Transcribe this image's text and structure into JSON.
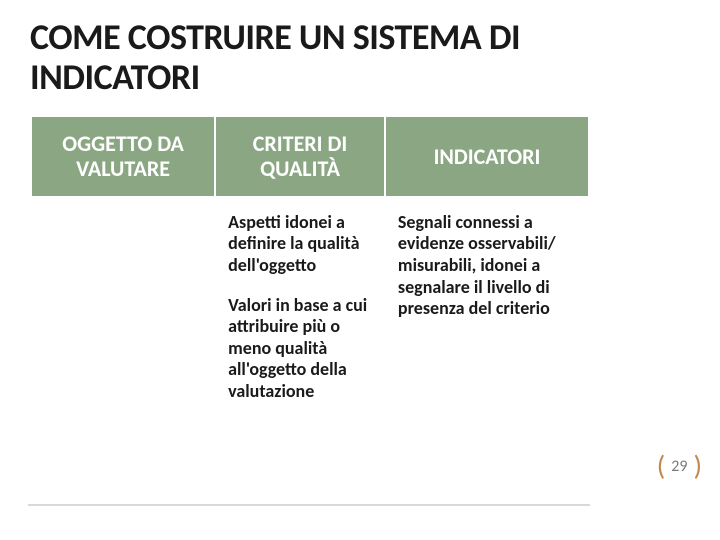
{
  "title": "COME COSTRUIRE UN SISTEMA DI INDICATORI",
  "headers": {
    "col1": "OGGETTO DA VALUTARE",
    "col2": "CRITERI DI QUALITÀ",
    "col3": "INDICATORI"
  },
  "cells": {
    "c2p1": "Aspetti idonei a definire la qualità dell'oggetto",
    "c2p2": "Valori in base a cui attribuire più o meno qualità all'oggetto della valutazione",
    "c3p1": "Segnali connessi a evidenze osservabili/ misurabili, idonei a segnalare il livello di presenza del criterio"
  },
  "pageNumber": "29",
  "colors": {
    "header_bg": "#8aa683",
    "header_text": "#ffffff",
    "bracket": "#c18a4a"
  }
}
